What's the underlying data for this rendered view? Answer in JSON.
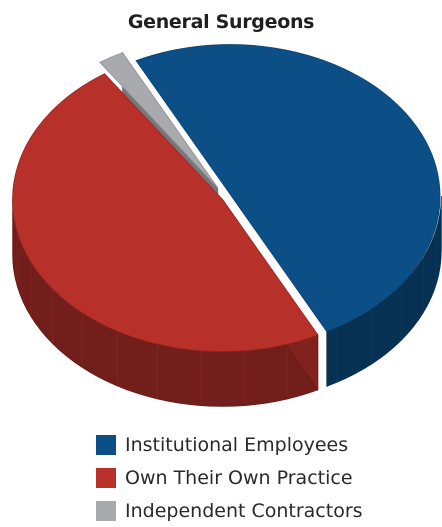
{
  "chart_data": {
    "type": "pie",
    "title": "General Surgeons",
    "categories": [
      "Institutional Employees",
      "Own Their Own Practice",
      "Independent Contractors"
    ],
    "values": [
      50,
      48,
      2
    ],
    "unit": "percent (estimated)",
    "three_d": true,
    "exploded": true,
    "legend_position": "bottom",
    "colors": {
      "Institutional Employees": "#0c4f86",
      "Own Their Own Practice": "#b8302a",
      "Independent Contractors": "#a8aaae"
    }
  },
  "legend": {
    "items": [
      {
        "label": "Institutional Employees",
        "color": "#0c4f86"
      },
      {
        "label": "Own Their Own Practice",
        "color": "#b8302a"
      },
      {
        "label": "Independent Contractors",
        "color": "#a8aaae"
      }
    ]
  }
}
